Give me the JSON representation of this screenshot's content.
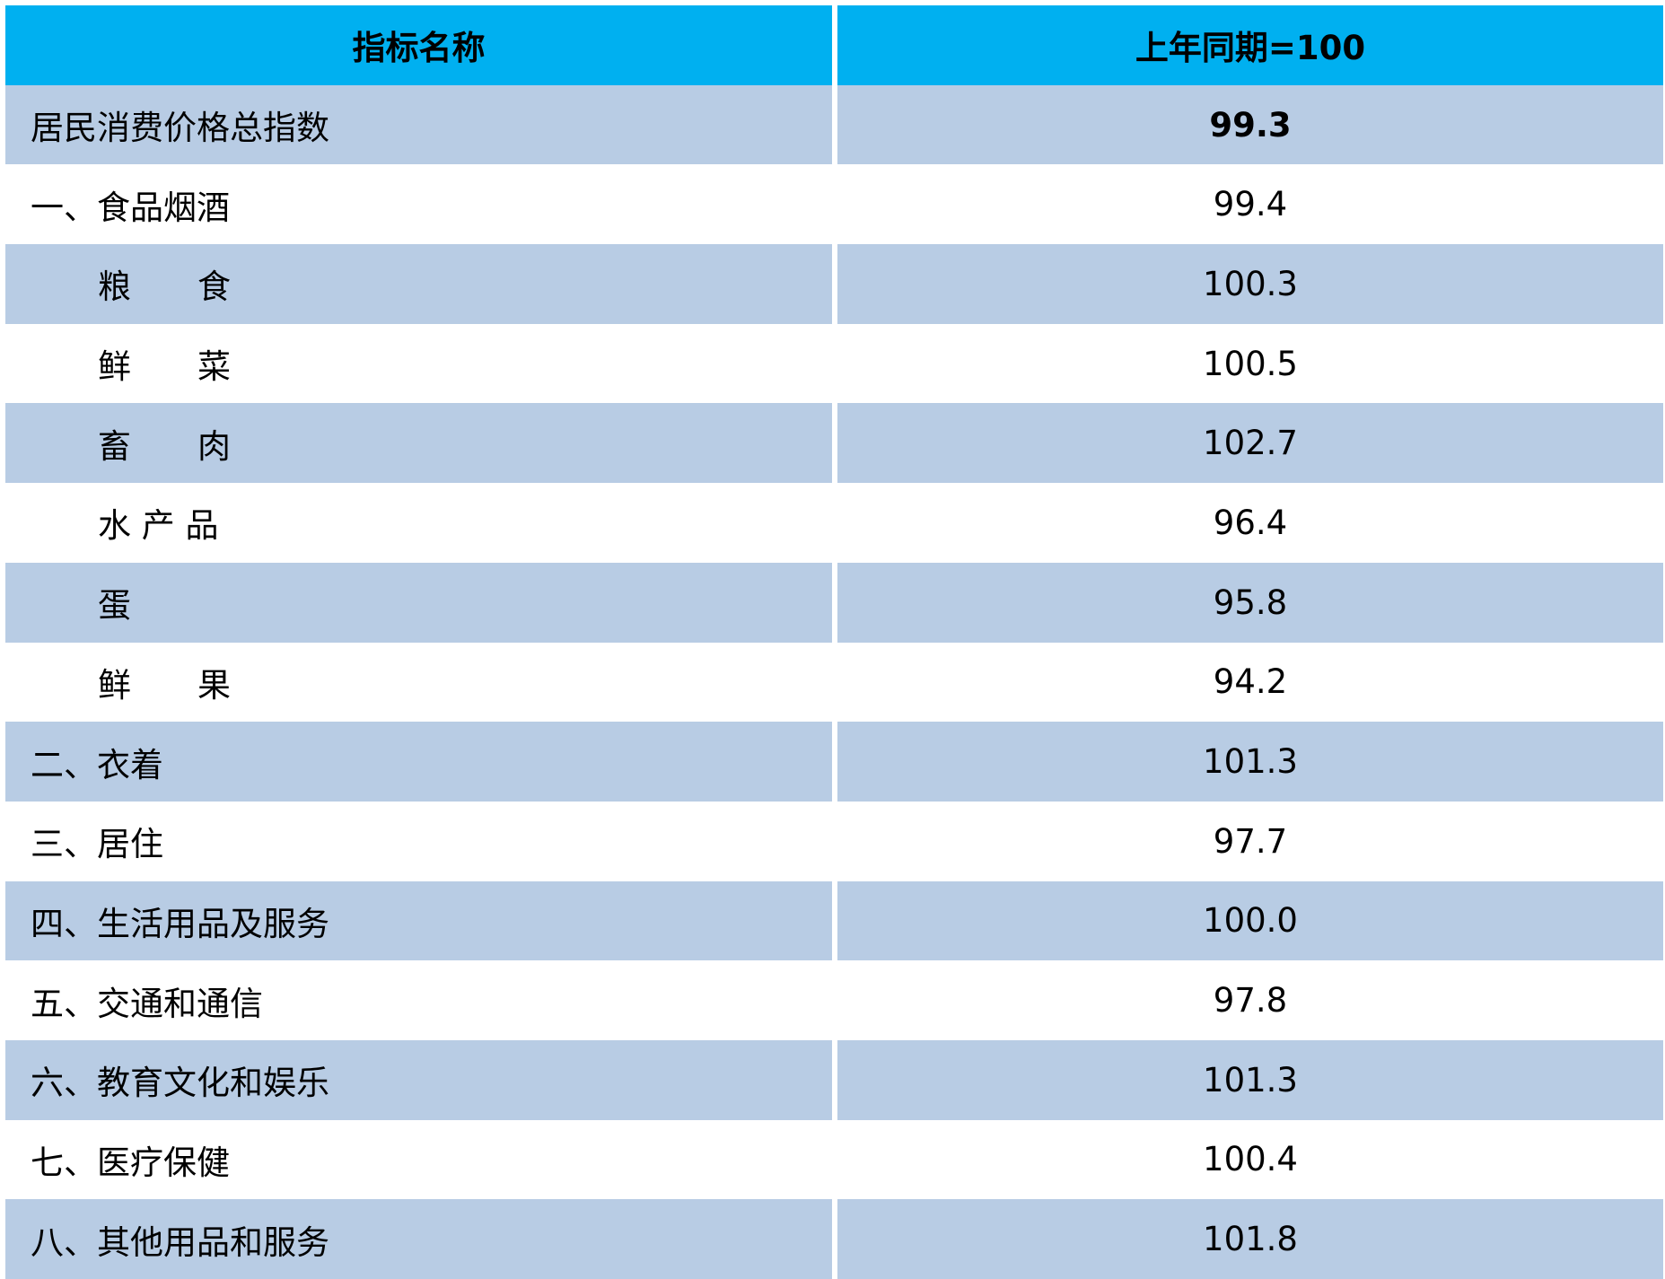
{
  "table": {
    "header": [
      "指标名称",
      "上年同期=100"
    ],
    "rows": [
      [
        "居民消费价格总指数",
        "99.3"
      ],
      [
        "一、食品烟酒",
        "99.4"
      ],
      [
        "粮　　食",
        "100.3"
      ],
      [
        "鲜　　菜",
        "100.5"
      ],
      [
        "畜　　肉",
        "102.7"
      ],
      [
        "水 产 品",
        "96.4"
      ],
      [
        "蛋",
        "95.8"
      ],
      [
        "鲜　　果",
        "94.2"
      ],
      [
        "二、衣着",
        "101.3"
      ],
      [
        "三、居住",
        "97.7"
      ],
      [
        "四、生活用品及服务",
        "100.0"
      ],
      [
        "五、交通和通信",
        "97.8"
      ],
      [
        "六、教育文化和娱乐",
        "101.3"
      ],
      [
        "七、医疗保健",
        "100.4"
      ],
      [
        "八、其他用品和服务",
        "101.8"
      ]
    ]
  }
}
